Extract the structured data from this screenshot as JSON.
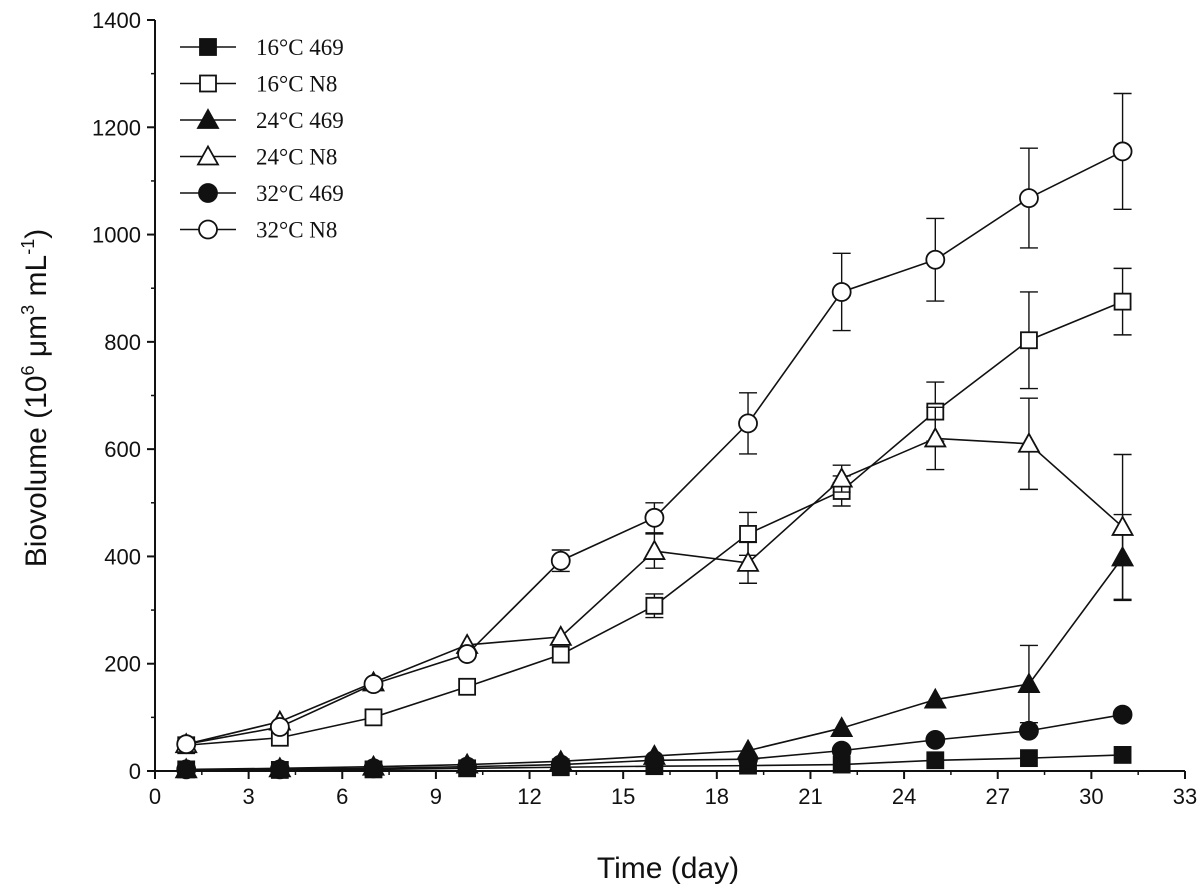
{
  "chart_data": {
    "type": "line",
    "title": "",
    "xlabel": "Time (day)",
    "ylabel": {
      "prefix": "Biovolume (10",
      "exp1": "6",
      "mid": " μm",
      "exp2": "3",
      "mid2": " mL",
      "exp3": "-1",
      "suffix": ")"
    },
    "xlim": [
      0,
      33
    ],
    "ylim": [
      0,
      1400
    ],
    "xticks": [
      0,
      3,
      6,
      9,
      12,
      15,
      18,
      21,
      24,
      27,
      30,
      33
    ],
    "yticks": [
      0,
      200,
      400,
      600,
      800,
      1000,
      1200,
      1400
    ],
    "grid": false,
    "legend_position": "top-left",
    "x": [
      1,
      4,
      7,
      10,
      13,
      16,
      19,
      22,
      25,
      28,
      31
    ],
    "series": [
      {
        "name": "16°C 469",
        "marker": "square",
        "filled": true,
        "values": [
          3,
          2,
          3,
          5,
          7,
          9,
          10,
          12,
          20,
          24,
          30
        ],
        "errors": [
          0,
          0,
          0,
          0,
          0,
          0,
          0,
          0,
          0,
          0,
          0
        ]
      },
      {
        "name": "16°C N8",
        "marker": "square",
        "filled": false,
        "values": [
          48,
          62,
          100,
          157,
          217,
          308,
          442,
          522,
          670,
          803,
          875
        ],
        "errors": [
          0,
          0,
          0,
          0,
          0,
          22,
          40,
          28,
          55,
          90,
          62
        ]
      },
      {
        "name": "24°C 469",
        "marker": "triangle",
        "filled": true,
        "values": [
          3,
          5,
          8,
          12,
          18,
          28,
          38,
          80,
          133,
          162,
          398
        ],
        "errors": [
          0,
          0,
          0,
          0,
          0,
          0,
          0,
          0,
          0,
          72,
          80
        ]
      },
      {
        "name": "24°C N8",
        "marker": "triangle",
        "filled": false,
        "values": [
          50,
          92,
          165,
          235,
          250,
          410,
          388,
          545,
          620,
          610,
          455
        ],
        "errors": [
          0,
          0,
          0,
          0,
          0,
          32,
          38,
          25,
          58,
          85,
          135
        ]
      },
      {
        "name": "32°C 469",
        "marker": "circle",
        "filled": true,
        "values": [
          3,
          3,
          5,
          8,
          12,
          20,
          22,
          38,
          58,
          75,
          105
        ],
        "errors": [
          0,
          0,
          0,
          0,
          0,
          0,
          0,
          0,
          0,
          0,
          0
        ]
      },
      {
        "name": "32°C N8",
        "marker": "circle",
        "filled": false,
        "values": [
          50,
          82,
          162,
          218,
          392,
          472,
          648,
          893,
          953,
          1068,
          1155
        ],
        "errors": [
          0,
          0,
          0,
          0,
          20,
          28,
          57,
          72,
          77,
          93,
          108
        ]
      }
    ],
    "colors": {
      "ink": "#111111",
      "background": "#ffffff"
    }
  }
}
